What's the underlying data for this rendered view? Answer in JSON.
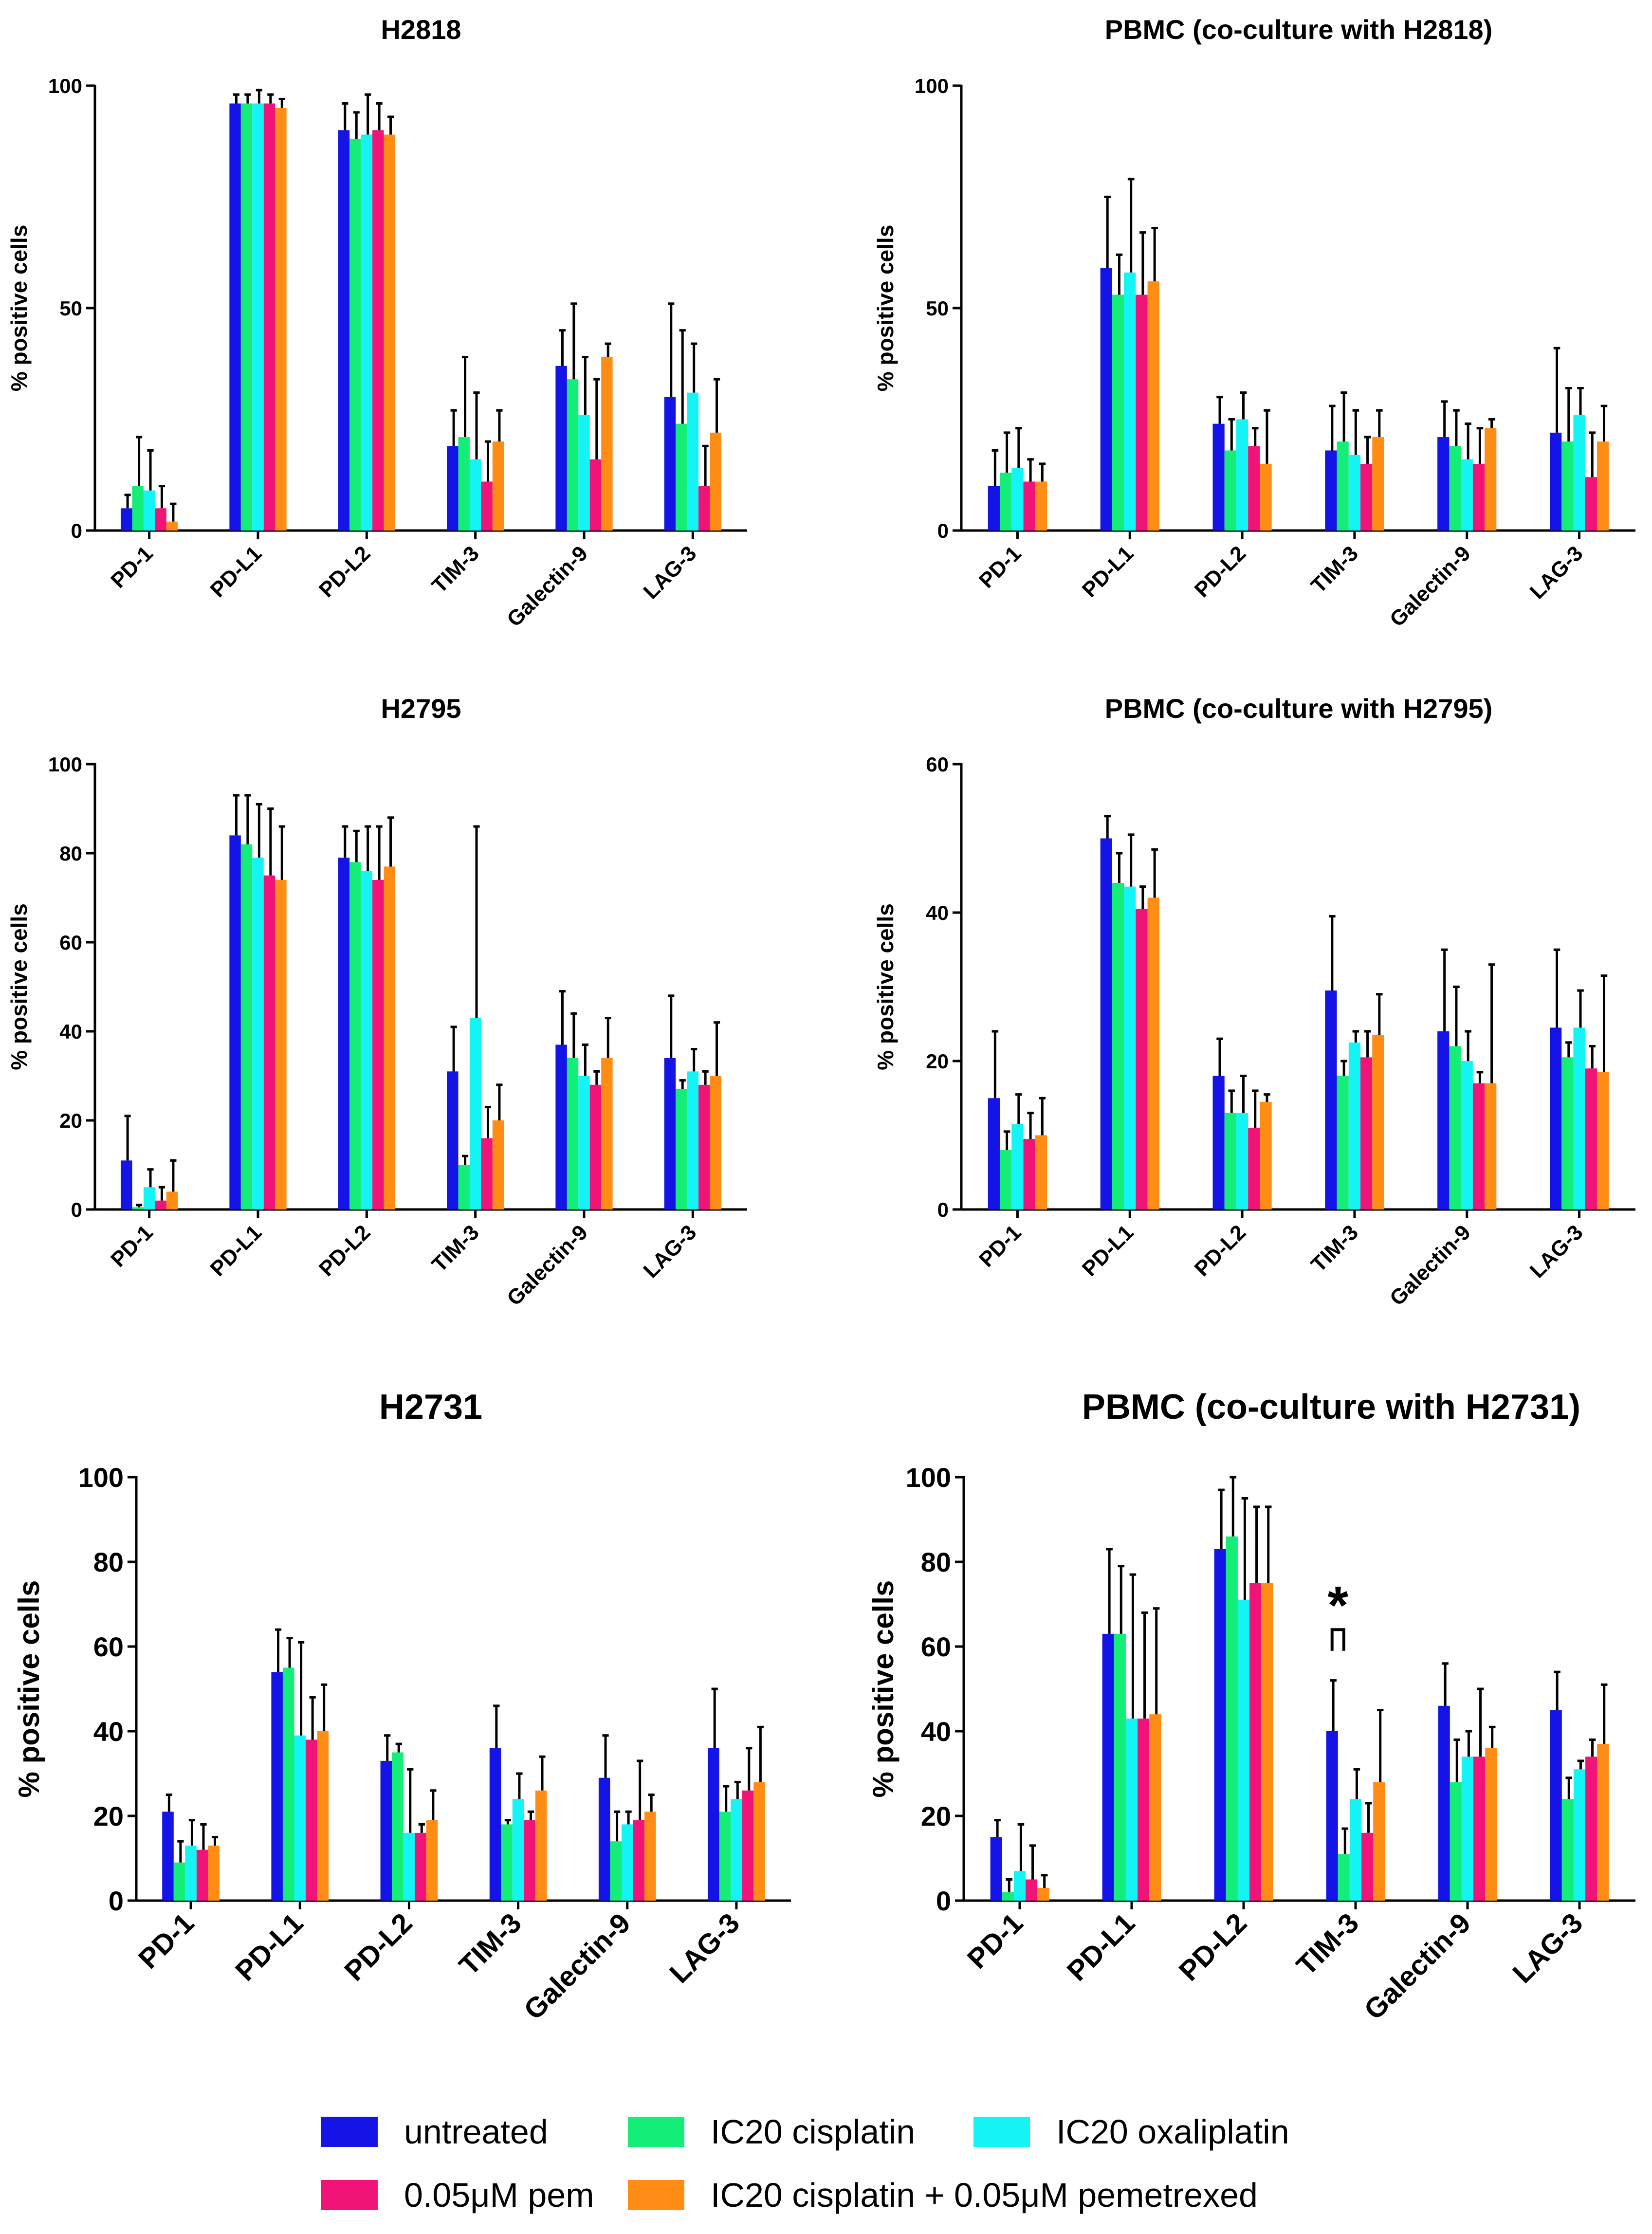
{
  "colors": {
    "untreated": "#1414e6",
    "cisplatin": "#14ee78",
    "oxaliplatin": "#14f4f4",
    "pem": "#f01478",
    "combo": "#ff8c14"
  },
  "legend": [
    {
      "label": "untreated",
      "color_key": "untreated"
    },
    {
      "label": "IC20 cisplatin",
      "color_key": "cisplatin"
    },
    {
      "label": "IC20 oxaliplatin",
      "color_key": "oxaliplatin"
    },
    {
      "label": "0.05μM pem",
      "color_key": "pem"
    },
    {
      "label": "IC20 cisplatin + 0.05μM pemetrexed",
      "color_key": "combo"
    }
  ],
  "chart_data": [
    {
      "type": "bar",
      "title": "H2818",
      "ylabel": "% positive cells",
      "xlabel": "",
      "ylim": [
        0,
        100
      ],
      "yticks": [
        0,
        50,
        100
      ],
      "categories": [
        "PD-1",
        "PD-L1",
        "PD-L2",
        "TIM-3",
        "Galectin-9",
        "LAG-3"
      ],
      "series": [
        {
          "name": "untreated",
          "values": [
            5,
            96,
            90,
            19,
            37,
            30
          ],
          "error": [
            3,
            2,
            6,
            8,
            8,
            21
          ]
        },
        {
          "name": "IC20 cisplatin",
          "values": [
            10,
            96,
            88,
            21,
            34,
            24
          ],
          "error": [
            11,
            2,
            6,
            18,
            17,
            21
          ]
        },
        {
          "name": "IC20 oxaliplatin",
          "values": [
            9,
            96,
            89,
            16,
            26,
            31
          ],
          "error": [
            9,
            3,
            9,
            15,
            13,
            11
          ]
        },
        {
          "name": "0.05μM pem",
          "values": [
            5,
            96,
            90,
            11,
            16,
            10
          ],
          "error": [
            5,
            2,
            6,
            9,
            18,
            9
          ]
        },
        {
          "name": "IC20 cisplatin + 0.05μM pemetrexed",
          "values": [
            2,
            95,
            89,
            20,
            39,
            22
          ],
          "error": [
            4,
            2,
            4,
            7,
            3,
            12
          ]
        }
      ]
    },
    {
      "type": "bar",
      "title": "PBMC (co-culture with H2818)",
      "ylabel": "% positive cells",
      "xlabel": "",
      "ylim": [
        0,
        100
      ],
      "yticks": [
        0,
        50,
        100
      ],
      "categories": [
        "PD-1",
        "PD-L1",
        "PD-L2",
        "TIM-3",
        "Galectin-9",
        "LAG-3"
      ],
      "series": [
        {
          "name": "untreated",
          "values": [
            10,
            59,
            24,
            18,
            21,
            22
          ],
          "error": [
            8,
            16,
            6,
            10,
            8,
            19
          ]
        },
        {
          "name": "IC20 cisplatin",
          "values": [
            13,
            53,
            18,
            20,
            19,
            20
          ],
          "error": [
            9,
            9,
            7,
            11,
            8,
            12
          ]
        },
        {
          "name": "IC20 oxaliplatin",
          "values": [
            14,
            58,
            25,
            17,
            16,
            26
          ],
          "error": [
            9,
            21,
            6,
            10,
            8,
            6
          ]
        },
        {
          "name": "0.05μM pem",
          "values": [
            11,
            53,
            19,
            15,
            15,
            12
          ],
          "error": [
            5,
            14,
            4,
            6,
            8,
            10
          ]
        },
        {
          "name": "IC20 cisplatin + 0.05μM pemetrexed",
          "values": [
            11,
            56,
            15,
            21,
            23,
            20
          ],
          "error": [
            4,
            12,
            12,
            6,
            2,
            8
          ]
        }
      ]
    },
    {
      "type": "bar",
      "title": "H2795",
      "ylabel": "% positive cells",
      "xlabel": "",
      "ylim": [
        0,
        100
      ],
      "yticks": [
        0,
        20,
        40,
        60,
        80,
        100
      ],
      "categories": [
        "PD-1",
        "PD-L1",
        "PD-L2",
        "TIM-3",
        "Galectin-9",
        "LAG-3"
      ],
      "series": [
        {
          "name": "untreated",
          "values": [
            11,
            84,
            79,
            31,
            37,
            34
          ],
          "error": [
            10,
            9,
            7,
            10,
            12,
            14
          ]
        },
        {
          "name": "IC20 cisplatin",
          "values": [
            0.5,
            82,
            78,
            10,
            34,
            27
          ],
          "error": [
            0.5,
            11,
            7,
            2,
            10,
            2
          ]
        },
        {
          "name": "IC20 oxaliplatin",
          "values": [
            5,
            79,
            76,
            43,
            30,
            31
          ],
          "error": [
            4,
            12,
            10,
            43,
            7,
            5
          ]
        },
        {
          "name": "0.05μM pem",
          "values": [
            2,
            75,
            74,
            16,
            28,
            28
          ],
          "error": [
            3,
            15,
            12,
            7,
            3,
            3
          ]
        },
        {
          "name": "IC20 cisplatin + 0.05μM pemetrexed",
          "values": [
            4,
            74,
            77,
            20,
            34,
            30
          ],
          "error": [
            7,
            12,
            11,
            8,
            9,
            12
          ]
        }
      ]
    },
    {
      "type": "bar",
      "title": "PBMC (co-culture with H2795)",
      "ylabel": "% positive cells",
      "xlabel": "",
      "ylim": [
        0,
        60
      ],
      "yticks": [
        0,
        20,
        40,
        60
      ],
      "categories": [
        "PD-1",
        "PD-L1",
        "PD-L2",
        "TIM-3",
        "Galectin-9",
        "LAG-3"
      ],
      "series": [
        {
          "name": "untreated",
          "values": [
            15,
            50,
            18,
            29.5,
            24,
            24.5
          ],
          "error": [
            9,
            3,
            5,
            10,
            11,
            10.5
          ]
        },
        {
          "name": "IC20 cisplatin",
          "values": [
            8,
            44,
            13,
            18,
            22,
            20.5
          ],
          "error": [
            2.5,
            4,
            3,
            2,
            8,
            2
          ]
        },
        {
          "name": "IC20 oxaliplatin",
          "values": [
            11.5,
            43.5,
            13,
            22.5,
            20,
            24.5
          ],
          "error": [
            4,
            7,
            5,
            1.5,
            4,
            5
          ]
        },
        {
          "name": "0.05μM pem",
          "values": [
            9.5,
            40.5,
            11,
            20.5,
            17,
            19
          ],
          "error": [
            3.5,
            3,
            5,
            3.5,
            1.5,
            3
          ]
        },
        {
          "name": "IC20 cisplatin + 0.05μM pemetrexed",
          "values": [
            10,
            42,
            14.5,
            23.5,
            17,
            18.5
          ],
          "error": [
            5,
            6.5,
            1,
            5.5,
            16,
            13
          ]
        }
      ]
    },
    {
      "type": "bar",
      "title": "H2731",
      "ylabel": "% positive cells",
      "xlabel": "",
      "ylim": [
        0,
        100
      ],
      "yticks": [
        0,
        20,
        40,
        60,
        80,
        100
      ],
      "categories": [
        "PD-1",
        "PD-L1",
        "PD-L2",
        "TIM-3",
        "Galectin-9",
        "LAG-3"
      ],
      "series": [
        {
          "name": "untreated",
          "values": [
            21,
            54,
            33,
            36,
            29,
            36
          ],
          "error": [
            4,
            10,
            6,
            10,
            10,
            14
          ]
        },
        {
          "name": "IC20 cisplatin",
          "values": [
            9,
            55,
            35,
            18,
            14,
            21
          ],
          "error": [
            5,
            7,
            2,
            1,
            7,
            6
          ]
        },
        {
          "name": "IC20 oxaliplatin",
          "values": [
            13,
            39,
            16,
            24,
            18,
            24
          ],
          "error": [
            6,
            22,
            15,
            6,
            3,
            4
          ]
        },
        {
          "name": "0.05μM pem",
          "values": [
            12,
            38,
            16,
            19,
            19,
            26
          ],
          "error": [
            6,
            10,
            2,
            2,
            14,
            10
          ]
        },
        {
          "name": "IC20 cisplatin + 0.05μM pemetrexed",
          "values": [
            13,
            40,
            19,
            26,
            21,
            28
          ],
          "error": [
            2,
            11,
            7,
            8,
            4,
            13
          ]
        }
      ]
    },
    {
      "type": "bar",
      "title": "PBMC (co-culture with H2731)",
      "ylabel": "% positive cells",
      "xlabel": "",
      "ylim": [
        0,
        100
      ],
      "yticks": [
        0,
        20,
        40,
        60,
        80,
        100
      ],
      "categories": [
        "PD-1",
        "PD-L1",
        "PD-L2",
        "TIM-3",
        "Galectin-9",
        "LAG-3"
      ],
      "annotation": {
        "text": "*",
        "category": "TIM-3"
      },
      "series": [
        {
          "name": "untreated",
          "values": [
            15,
            63,
            83,
            40,
            46,
            45
          ],
          "error": [
            4,
            20,
            14,
            12,
            10,
            9
          ]
        },
        {
          "name": "IC20 cisplatin",
          "values": [
            2,
            63,
            86,
            11,
            28,
            24
          ],
          "error": [
            3,
            16,
            14,
            6,
            10,
            5
          ]
        },
        {
          "name": "IC20 oxaliplatin",
          "values": [
            7,
            43,
            71,
            24,
            34,
            31
          ],
          "error": [
            11,
            34,
            24,
            7,
            6,
            2
          ]
        },
        {
          "name": "0.05μM pem",
          "values": [
            5,
            43,
            75,
            16,
            34,
            34
          ],
          "error": [
            8,
            25,
            18,
            7,
            16,
            4
          ]
        },
        {
          "name": "IC20 cisplatin + 0.05μM pemetrexed",
          "values": [
            3,
            44,
            75,
            28,
            36,
            37
          ],
          "error": [
            3,
            25,
            18,
            17,
            5,
            14
          ]
        }
      ]
    }
  ]
}
